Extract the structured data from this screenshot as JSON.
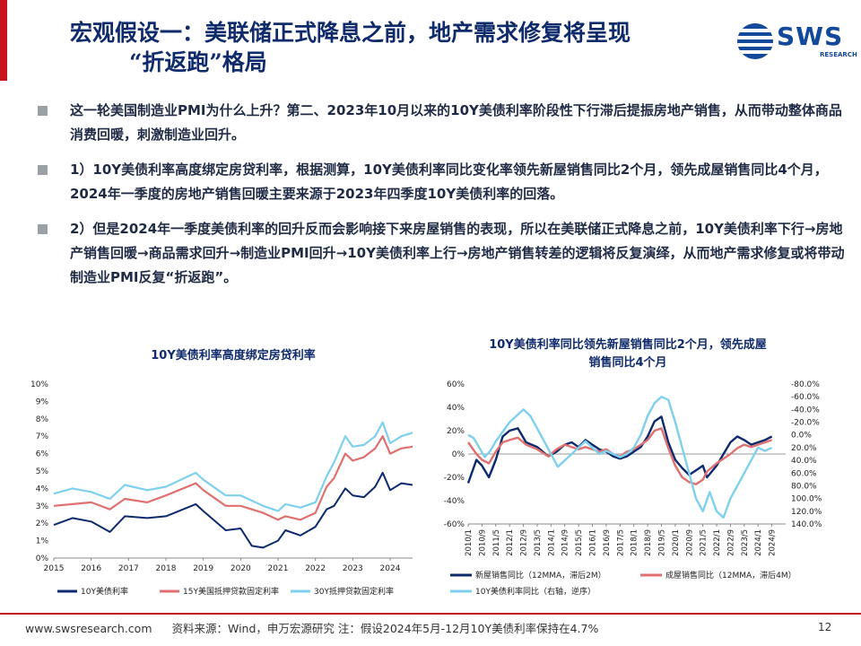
{
  "title": {
    "line1": "宏观假设一：美联储正式降息之前，地产需求修复将呈现",
    "line2": "“折返跑”格局"
  },
  "logo": {
    "text": "SWS",
    "subtext": "RESEARCH",
    "color": "#12499b"
  },
  "bullets": [
    "这一轮美国制造业PMI为什么上升？第二、2023年10月以来的10Y美债利率阶段性下行滞后提振房地产销售，从而带动整体商品消费回暖，刺激制造业回升。",
    "1）10Y美债利率高度绑定房贷利率，根据测算，10Y美债利率同比变化率领先新屋销售同比2个月，领先成屋销售同比4个月，2024年一季度的房地产销售回暖主要来源于2023年四季度10Y美债利率的回落。",
    "2）但是2024年一季度美债利率的回升反而会影响接下来房屋销售的表现，所以在美联储正式降息之前，10Y美债利率下行→房地产销售回暖→商品需求回升→制造业PMI回升→10Y美债利率上行→房地产销售转差的逻辑将反复演绎，从而地产需求修复或将带动制造业PMI反复“折返跑”。"
  ],
  "footer": {
    "website": "www.swsresearch.com",
    "source": "资料来源：Wind，申万宏源研究 注：假设2024年5月-12月10Y美债利率保持在4.7%",
    "page": "12"
  },
  "chart_data": [
    {
      "type": "line",
      "title": "10Y美债利率高度绑定房贷利率",
      "x_ticks": [
        "2015",
        "2016",
        "2017",
        "2018",
        "2019",
        "2020",
        "2021",
        "2022",
        "2023",
        "2024"
      ],
      "x_range": [
        2015.0,
        2024.6
      ],
      "y_ticks": [
        "0%",
        "1%",
        "2%",
        "3%",
        "4%",
        "5%",
        "6%",
        "7%",
        "8%",
        "9%",
        "10%"
      ],
      "ylim": [
        0,
        10
      ],
      "legend_position": "bottom",
      "colors": [
        "#0d2a6e",
        "#e07070",
        "#7fd0ee"
      ],
      "series": [
        {
          "name": "10Y美债利率",
          "x": [
            2015.0,
            2015.5,
            2016.0,
            2016.5,
            2016.9,
            2017.5,
            2018.0,
            2018.8,
            2019.0,
            2019.6,
            2020.0,
            2020.3,
            2020.6,
            2021.0,
            2021.2,
            2021.6,
            2022.0,
            2022.3,
            2022.5,
            2022.8,
            2023.0,
            2023.3,
            2023.6,
            2023.8,
            2024.0,
            2024.3,
            2024.6
          ],
          "y": [
            1.9,
            2.3,
            2.1,
            1.5,
            2.4,
            2.3,
            2.4,
            3.1,
            2.7,
            1.6,
            1.7,
            0.7,
            0.6,
            1.0,
            1.6,
            1.3,
            1.8,
            2.8,
            3.0,
            4.0,
            3.6,
            3.5,
            4.1,
            4.9,
            3.9,
            4.3,
            4.2
          ]
        },
        {
          "name": "15Y美国抵押贷款固定利率",
          "x": [
            2015.0,
            2015.5,
            2016.0,
            2016.5,
            2016.9,
            2017.5,
            2018.0,
            2018.8,
            2019.0,
            2019.6,
            2020.0,
            2020.3,
            2020.6,
            2021.0,
            2021.2,
            2021.6,
            2022.0,
            2022.3,
            2022.5,
            2022.8,
            2023.0,
            2023.3,
            2023.6,
            2023.8,
            2024.0,
            2024.3,
            2024.6
          ],
          "y": [
            3.0,
            3.1,
            3.2,
            2.8,
            3.4,
            3.2,
            3.6,
            4.3,
            3.9,
            3.0,
            3.0,
            2.8,
            2.6,
            2.2,
            2.4,
            2.2,
            2.6,
            4.1,
            4.6,
            6.0,
            5.6,
            5.8,
            6.3,
            7.0,
            6.0,
            6.3,
            6.4
          ]
        },
        {
          "name": "30Y抵押贷款固定利率",
          "x": [
            2015.0,
            2015.5,
            2016.0,
            2016.5,
            2016.9,
            2017.5,
            2018.0,
            2018.8,
            2019.0,
            2019.6,
            2020.0,
            2020.3,
            2020.6,
            2021.0,
            2021.2,
            2021.6,
            2022.0,
            2022.3,
            2022.5,
            2022.8,
            2023.0,
            2023.3,
            2023.6,
            2023.8,
            2024.0,
            2024.3,
            2024.6
          ],
          "y": [
            3.7,
            4.0,
            3.8,
            3.4,
            4.2,
            3.9,
            4.1,
            4.9,
            4.5,
            3.6,
            3.6,
            3.3,
            3.0,
            2.7,
            3.1,
            2.9,
            3.2,
            4.7,
            5.5,
            7.0,
            6.4,
            6.5,
            7.0,
            7.8,
            6.6,
            7.0,
            7.2
          ]
        }
      ]
    },
    {
      "type": "line",
      "title": "10Y美债利率同比领先新屋销售同比2个月，领先成屋销售同比4个月",
      "x_ticks": [
        "2010/1",
        "2010/9",
        "2011/5",
        "2012/1",
        "2012/9",
        "2013/5",
        "2014/1",
        "2014/9",
        "2015/5",
        "2016/1",
        "2016/9",
        "2017/5",
        "2018/1",
        "2018/9",
        "2019/5",
        "2020/1",
        "2020/9",
        "2021/5",
        "2022/1",
        "2022/9",
        "2023/5",
        "2024/1",
        "2024/9"
      ],
      "x_range": [
        0,
        23
      ],
      "y_ticks": [
        "60%",
        "40%",
        "20%",
        "0%",
        "-20%",
        "-40%",
        "-60%"
      ],
      "ylim": [
        -60,
        60
      ],
      "y2_ticks": [
        "-80.0%",
        "-60.0%",
        "-40.0%",
        "-20.0%",
        "0.0%",
        "20.0%",
        "40.0%",
        "60.0%",
        "80.0%",
        "100.0%",
        "120.0%",
        "140.0%"
      ],
      "y2lim": [
        -80,
        140
      ],
      "y2_inverted": true,
      "legend_position": "bottom",
      "colors": [
        "#0d2a6e",
        "#e07070",
        "#7fd0ee"
      ],
      "series": [
        {
          "name": "新屋销售同比（12MMA，滞后2M）",
          "axis": "left",
          "x": [
            0,
            0.6,
            1.0,
            1.5,
            2.0,
            2.5,
            3.0,
            3.6,
            4.2,
            5.0,
            5.8,
            6.4,
            7.0,
            7.5,
            8.0,
            8.5,
            9.0,
            9.5,
            10.0,
            10.5,
            11.0,
            11.5,
            12.0,
            12.5,
            13.0,
            13.5,
            14.0,
            14.5,
            15.0,
            15.5,
            16.0,
            16.5,
            17.0,
            17.3,
            18.0,
            18.5,
            19.0,
            19.5,
            20.0,
            20.5,
            21.0,
            21.5,
            22.0
          ],
          "y": [
            -25,
            -5,
            -10,
            -20,
            -5,
            15,
            20,
            22,
            10,
            6,
            -2,
            2,
            8,
            10,
            6,
            12,
            8,
            4,
            2,
            -2,
            -4,
            -2,
            2,
            6,
            15,
            28,
            32,
            10,
            -5,
            -12,
            -18,
            -14,
            -10,
            -20,
            -10,
            0,
            10,
            15,
            12,
            8,
            10,
            12,
            15
          ]
        },
        {
          "name": "成屋销售同比（12MMA，滞后4M）",
          "axis": "left",
          "x": [
            0,
            0.6,
            1.0,
            1.5,
            2.0,
            2.5,
            3.0,
            3.6,
            4.2,
            5.0,
            5.8,
            6.4,
            7.0,
            7.5,
            8.0,
            8.5,
            9.0,
            9.5,
            10.0,
            10.5,
            11.0,
            11.5,
            12.0,
            12.5,
            13.0,
            13.5,
            14.0,
            14.5,
            15.0,
            15.5,
            16.0,
            16.5,
            17.0,
            17.3,
            18.0,
            18.5,
            19.0,
            19.5,
            20.0,
            20.5,
            21.0,
            21.5,
            22.0
          ],
          "y": [
            10,
            0,
            -5,
            -8,
            2,
            10,
            12,
            14,
            8,
            4,
            -2,
            4,
            8,
            6,
            4,
            6,
            4,
            2,
            4,
            0,
            -2,
            2,
            4,
            8,
            12,
            20,
            22,
            5,
            -10,
            -20,
            -24,
            -26,
            -22,
            -15,
            -8,
            -4,
            0,
            5,
            8,
            6,
            8,
            10,
            12
          ]
        },
        {
          "name": "10Y美债利率同比（右轴，逆序）",
          "axis": "right",
          "x": [
            0,
            0.4,
            0.8,
            1.2,
            1.6,
            2.0,
            2.5,
            3.0,
            3.5,
            4.0,
            4.5,
            5.0,
            5.5,
            6.0,
            6.5,
            7.0,
            7.5,
            8.0,
            8.5,
            9.0,
            9.5,
            10.0,
            10.5,
            11.0,
            11.5,
            12.0,
            12.5,
            13.0,
            13.5,
            14.0,
            14.5,
            15.0,
            15.5,
            16.0,
            16.5,
            17.0,
            17.5,
            18.0,
            18.5,
            19.0,
            19.5,
            20.0,
            20.5,
            21.0,
            21.5,
            22.0
          ],
          "y": [
            0,
            5,
            20,
            35,
            25,
            10,
            -5,
            -20,
            -30,
            -40,
            -30,
            -10,
            10,
            30,
            50,
            40,
            30,
            20,
            10,
            20,
            30,
            25,
            30,
            35,
            30,
            20,
            0,
            -30,
            -50,
            -60,
            -55,
            -20,
            20,
            60,
            100,
            120,
            90,
            120,
            130,
            100,
            80,
            60,
            40,
            20,
            25,
            20
          ]
        }
      ]
    }
  ]
}
